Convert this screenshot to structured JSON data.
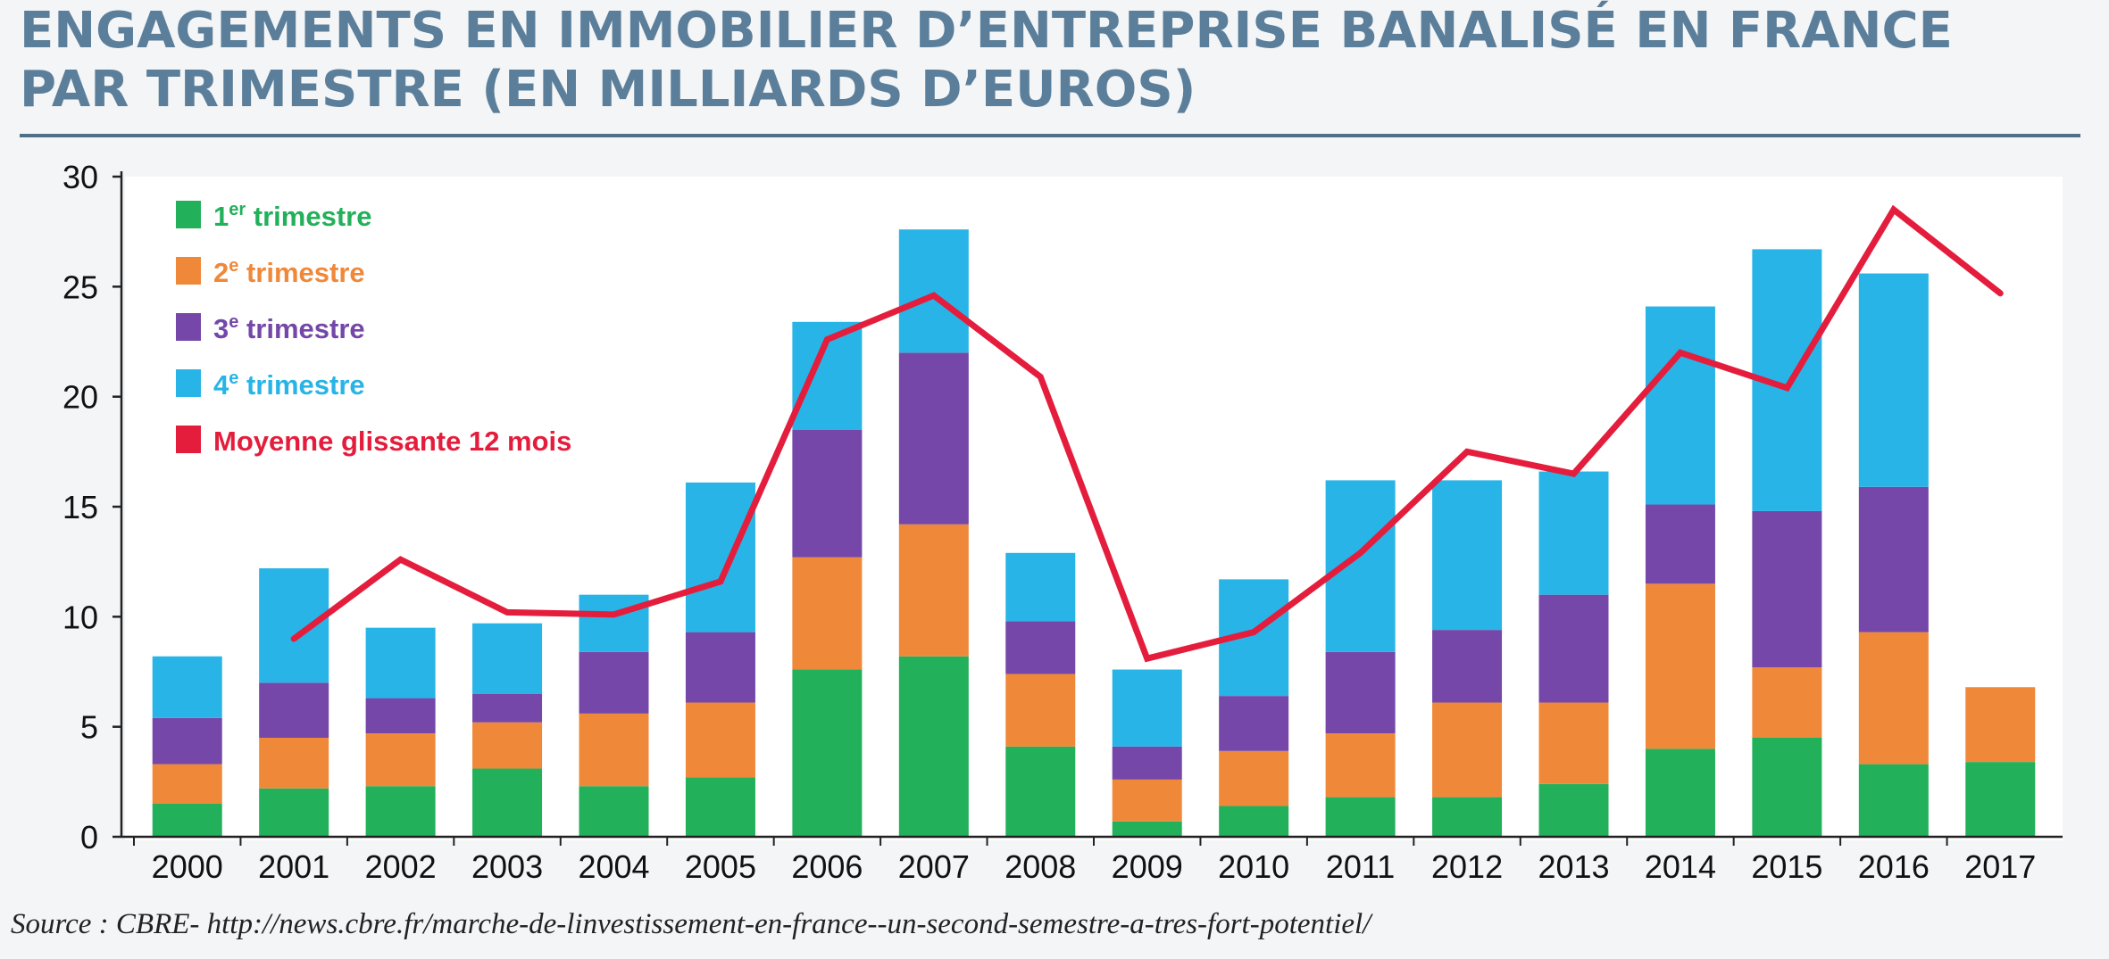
{
  "header": {
    "title_line1": "ENGAGEMENTS EN IMMOBILIER D’ENTREPRISE BANALISÉ EN FRANCE",
    "title_line2": "PAR TRIMESTRE (EN MILLIARDS D’EUROS)"
  },
  "footer": {
    "source": "Source : CBRE- http://news.cbre.fr/marche-de-linvestissement-en-france--un-second-semestre-a-tres-fort-potentiel/"
  },
  "chart_data": {
    "type": "bar",
    "stacked": true,
    "title": "ENGAGEMENTS EN IMMOBILIER D’ENTREPRISE BANALISÉ EN FRANCE PAR TRIMESTRE (EN MILLIARDS D’EUROS)",
    "xlabel": "",
    "ylabel": "",
    "ylim": [
      0,
      30
    ],
    "yticks": [
      0,
      5,
      10,
      15,
      20,
      25,
      30
    ],
    "grid": false,
    "legend_position": "top-left",
    "categories": [
      "2000",
      "2001",
      "2002",
      "2003",
      "2004",
      "2005",
      "2006",
      "2007",
      "2008",
      "2009",
      "2010",
      "2011",
      "2012",
      "2013",
      "2014",
      "2015",
      "2016",
      "2017"
    ],
    "series": [
      {
        "legend_prefix": "1",
        "legend_sup": "er",
        "legend_suffix": " trimestre",
        "color": "#22b05a",
        "values": [
          1.5,
          2.2,
          2.3,
          3.1,
          2.3,
          2.7,
          7.6,
          8.2,
          4.1,
          0.7,
          1.4,
          1.8,
          1.8,
          2.4,
          4.0,
          4.5,
          3.3,
          3.4
        ]
      },
      {
        "legend_prefix": "2",
        "legend_sup": "e",
        "legend_suffix": " trimestre",
        "color": "#f0883a",
        "values": [
          1.8,
          2.3,
          2.4,
          2.1,
          3.3,
          3.4,
          5.1,
          6.0,
          3.3,
          1.9,
          2.5,
          2.9,
          4.3,
          3.7,
          7.5,
          3.2,
          6.0,
          3.4
        ]
      },
      {
        "legend_prefix": "3",
        "legend_sup": "e",
        "legend_suffix": " trimestre",
        "color": "#7447a8",
        "values": [
          2.1,
          2.5,
          1.6,
          1.3,
          2.8,
          3.2,
          5.8,
          7.8,
          2.4,
          1.5,
          2.5,
          3.7,
          3.3,
          4.9,
          3.6,
          7.1,
          6.6,
          0
        ]
      },
      {
        "legend_prefix": "4",
        "legend_sup": "e",
        "legend_suffix": " trimestre",
        "color": "#28b4e6",
        "values": [
          2.8,
          5.2,
          3.2,
          3.2,
          2.6,
          6.8,
          4.9,
          5.6,
          3.1,
          3.5,
          5.3,
          7.8,
          6.8,
          5.6,
          9.0,
          11.9,
          9.7,
          0
        ]
      }
    ],
    "line": {
      "name": "Moyenne glissante 12 mois",
      "color": "#e41d3d",
      "x": [
        "2001",
        "2002",
        "2003",
        "2004",
        "2005",
        "2006",
        "2007",
        "2008",
        "2009",
        "2010",
        "2011",
        "2012",
        "2013",
        "2014",
        "2015",
        "2016",
        "2017"
      ],
      "values": [
        9.0,
        12.6,
        10.2,
        10.1,
        11.6,
        22.6,
        24.6,
        20.9,
        8.1,
        9.3,
        12.9,
        17.5,
        16.5,
        22.0,
        20.4,
        28.5,
        24.7
      ]
    }
  }
}
